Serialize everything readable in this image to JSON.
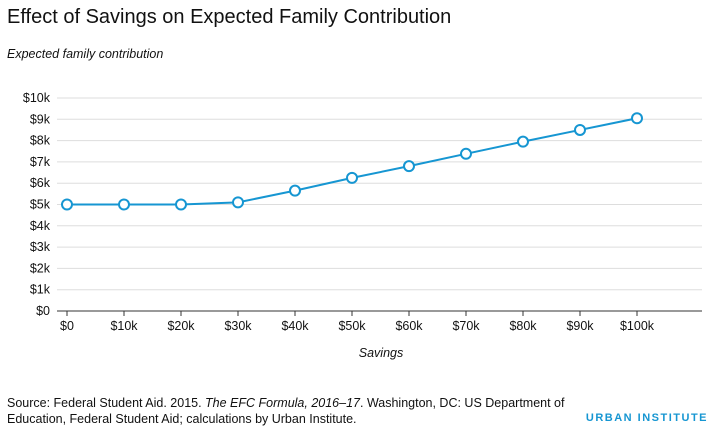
{
  "source": {
    "prefix": "Source: Federal Student Aid. 2015. ",
    "italic": "The EFC Formula, 2016–17",
    "suffix": ". Washington, DC: US Department of Education, Federal Student Aid; calculations by Urban Institute."
  },
  "logo": "URBAN INSTITUTE",
  "colors": {
    "line": "#1696d2",
    "grid": "#dddddd",
    "axis": "#333333"
  },
  "chart_data": {
    "type": "line",
    "title": "Effect of Savings on Expected Family Contribution",
    "ylabel": "Expected family contribution",
    "xlabel": "Savings",
    "x": [
      0,
      10000,
      20000,
      30000,
      40000,
      50000,
      60000,
      70000,
      80000,
      90000,
      100000
    ],
    "x_tick_labels": [
      "$0",
      "$10k",
      "$20k",
      "$30k",
      "$40k",
      "$50k",
      "$60k",
      "$70k",
      "$80k",
      "$90k",
      "$100k"
    ],
    "y_ticks": [
      0,
      1000,
      2000,
      3000,
      4000,
      5000,
      6000,
      7000,
      8000,
      9000,
      10000
    ],
    "y_tick_labels": [
      "$0",
      "$1k",
      "$2k",
      "$3k",
      "$4k",
      "$5k",
      "$6k",
      "$7k",
      "$8k",
      "$9k",
      "$10k"
    ],
    "ylim": [
      0,
      10000
    ],
    "grid": true,
    "series": [
      {
        "values": [
          5000,
          5000,
          5000,
          5100,
          5650,
          6250,
          6800,
          7380,
          7950,
          8500,
          9050
        ]
      }
    ]
  }
}
